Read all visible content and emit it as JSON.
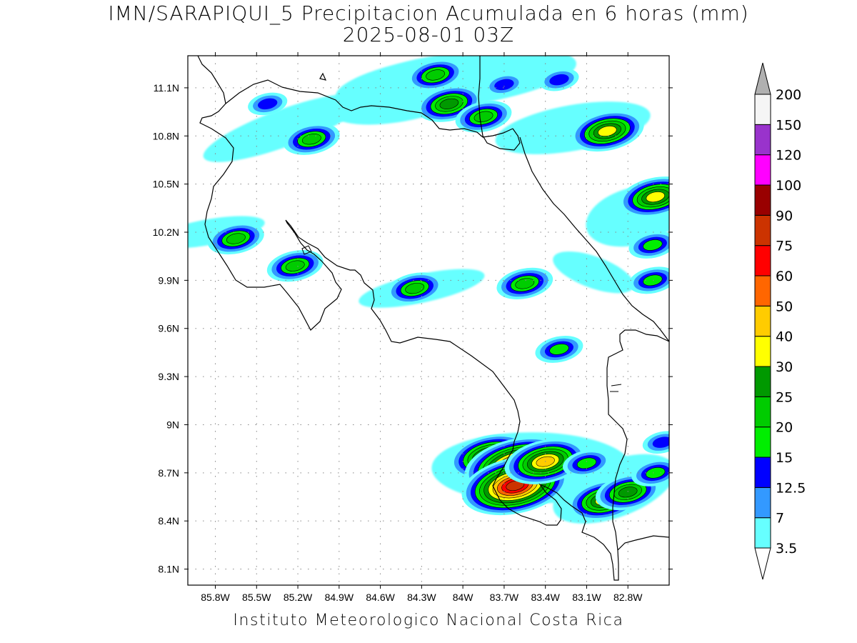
{
  "title": {
    "line1": "IMN/SARAPIQUI_5 Precipitacion Acumulada en 6 horas (mm)",
    "line2": "2025-08-01 03Z"
  },
  "footer": "Instituto Meteorologico Nacional Costa Rica",
  "map": {
    "lon_range": [
      -86.0,
      -82.5
    ],
    "lat_range": [
      8.0,
      11.3
    ],
    "x_ticks": [
      "85.8W",
      "85.5W",
      "85.2W",
      "84.9W",
      "84.6W",
      "84.3W",
      "84W",
      "83.7W",
      "83.4W",
      "83.1W",
      "82.8W"
    ],
    "x_tick_values": [
      -85.8,
      -85.5,
      -85.2,
      -84.9,
      -84.6,
      -84.3,
      -84.0,
      -83.7,
      -83.4,
      -83.1,
      -82.8
    ],
    "y_ticks": [
      "11.1N",
      "10.8N",
      "10.5N",
      "10.2N",
      "9.9N",
      "9.6N",
      "9.3N",
      "9N",
      "8.7N",
      "8.4N",
      "8.1N"
    ],
    "y_tick_values": [
      11.1,
      10.8,
      10.5,
      10.2,
      9.9,
      9.6,
      9.3,
      9.0,
      8.7,
      8.4,
      8.1
    ],
    "grid": "dotted"
  },
  "colorbar": {
    "levels": [
      "3.5",
      "7",
      "12.5",
      "15",
      "20",
      "25",
      "30",
      "40",
      "50",
      "60",
      "75",
      "90",
      "100",
      "120",
      "150",
      "200"
    ],
    "colors": [
      "#66ffff",
      "#3399ff",
      "#0000ff",
      "#00ee00",
      "#00cc00",
      "#009900",
      "#ffff00",
      "#ffcc00",
      "#ff6600",
      "#ff0000",
      "#cc3300",
      "#990000",
      "#ff00ff",
      "#9933cc",
      "#f5f5f5",
      "#b0b0b0"
    ]
  },
  "cells": [
    {
      "lon": -84.1,
      "lat": 11.0,
      "level": 5
    },
    {
      "lon": -84.2,
      "lat": 11.18,
      "level": 4
    },
    {
      "lon": -83.85,
      "lat": 10.92,
      "level": 4
    },
    {
      "lon": -83.7,
      "lat": 11.12,
      "level": 2
    },
    {
      "lon": -83.3,
      "lat": 11.15,
      "level": 2
    },
    {
      "lon": -82.95,
      "lat": 10.83,
      "level": 6
    },
    {
      "lon": -85.42,
      "lat": 11.0,
      "level": 2
    },
    {
      "lon": -85.1,
      "lat": 10.78,
      "level": 4
    },
    {
      "lon": -82.6,
      "lat": 10.42,
      "level": 6
    },
    {
      "lon": -85.65,
      "lat": 10.16,
      "level": 4
    },
    {
      "lon": -85.22,
      "lat": 9.99,
      "level": 4
    },
    {
      "lon": -84.35,
      "lat": 9.85,
      "level": 4
    },
    {
      "lon": -83.55,
      "lat": 9.88,
      "level": 4
    },
    {
      "lon": -83.3,
      "lat": 9.47,
      "level": 3
    },
    {
      "lon": -82.62,
      "lat": 9.9,
      "level": 3
    },
    {
      "lon": -82.62,
      "lat": 10.12,
      "level": 3
    },
    {
      "lon": -83.8,
      "lat": 8.8,
      "level": 7
    },
    {
      "lon": -83.6,
      "lat": 8.74,
      "level": 10
    },
    {
      "lon": -83.62,
      "lat": 8.62,
      "level": 10
    },
    {
      "lon": -83.4,
      "lat": 8.77,
      "level": 7
    },
    {
      "lon": -82.97,
      "lat": 8.53,
      "level": 6
    },
    {
      "lon": -82.8,
      "lat": 8.58,
      "level": 5
    },
    {
      "lon": -83.1,
      "lat": 8.76,
      "level": 3
    },
    {
      "lon": -82.6,
      "lat": 8.7,
      "level": 3
    },
    {
      "lon": -82.55,
      "lat": 8.89,
      "level": 2
    }
  ]
}
